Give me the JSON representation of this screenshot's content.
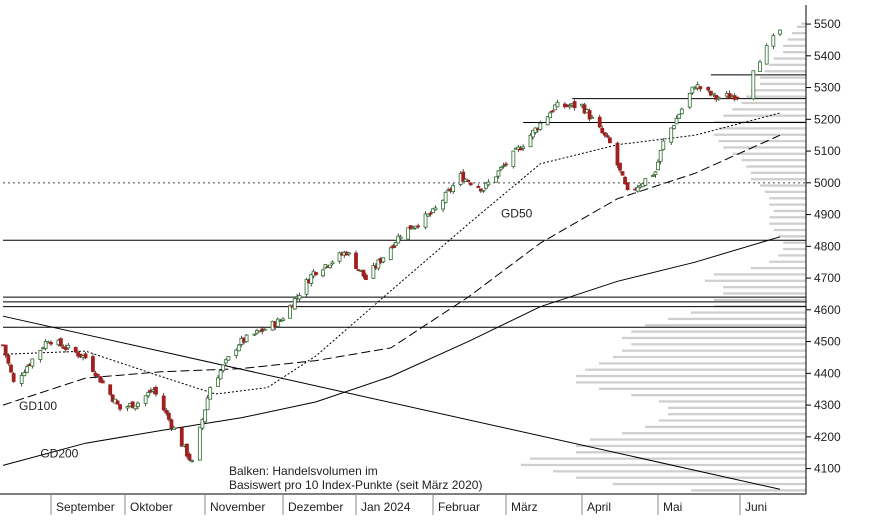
{
  "chart_data": {
    "type": "candlestick",
    "title": "",
    "xlabel": "",
    "ylabel": "",
    "ylim": [
      4020,
      5560
    ],
    "y_ticks": [
      4100,
      4200,
      4300,
      4400,
      4500,
      4600,
      4700,
      4800,
      4900,
      5000,
      5100,
      5200,
      5300,
      5400,
      5500
    ],
    "y_axis_side": "right",
    "grid": false,
    "x_labels": [
      {
        "label": "September",
        "date": "2023-09-01"
      },
      {
        "label": "Oktober",
        "date": "2023-10-01"
      },
      {
        "label": "November",
        "date": "2023-11-01"
      },
      {
        "label": "Dezember",
        "date": "2023-12-01"
      },
      {
        "label": "Jan 2024",
        "date": "2024-01-01"
      },
      {
        "label": "Februar",
        "date": "2024-02-01"
      },
      {
        "label": "März",
        "date": "2024-03-01"
      },
      {
        "label": "April",
        "date": "2024-04-01"
      },
      {
        "label": "Mai",
        "date": "2024-05-01"
      },
      {
        "label": "Juni",
        "date": "2024-06-01"
      }
    ],
    "date_range": [
      "2023-08-14",
      "2024-06-07"
    ],
    "price_anchors": [
      {
        "date": "2023-08-14",
        "close": 4489
      },
      {
        "date": "2023-08-18",
        "close": 4370
      },
      {
        "date": "2023-08-31",
        "close": 4508
      },
      {
        "date": "2023-09-15",
        "close": 4450
      },
      {
        "date": "2023-09-29",
        "close": 4288
      },
      {
        "date": "2023-10-06",
        "close": 4308
      },
      {
        "date": "2023-10-12",
        "close": 4349
      },
      {
        "date": "2023-10-20",
        "close": 4224
      },
      {
        "date": "2023-10-27",
        "close": 4117
      },
      {
        "date": "2023-11-03",
        "close": 4358
      },
      {
        "date": "2023-11-14",
        "close": 4495
      },
      {
        "date": "2023-11-30",
        "close": 4567
      },
      {
        "date": "2023-12-14",
        "close": 4719
      },
      {
        "date": "2023-12-28",
        "close": 4783
      },
      {
        "date": "2024-01-05",
        "close": 4697
      },
      {
        "date": "2024-01-19",
        "close": 4839
      },
      {
        "date": "2024-02-01",
        "close": 4906
      },
      {
        "date": "2024-02-12",
        "close": 5021
      },
      {
        "date": "2024-02-21",
        "close": 4981
      },
      {
        "date": "2024-03-08",
        "close": 5123
      },
      {
        "date": "2024-03-21",
        "close": 5241
      },
      {
        "date": "2024-04-01",
        "close": 5243
      },
      {
        "date": "2024-04-12",
        "close": 5123
      },
      {
        "date": "2024-04-19",
        "close": 4967
      },
      {
        "date": "2024-04-30",
        "close": 5035
      },
      {
        "date": "2024-05-03",
        "close": 5127
      },
      {
        "date": "2024-05-15",
        "close": 5308
      },
      {
        "date": "2024-05-23",
        "close": 5267
      },
      {
        "date": "2024-05-31",
        "close": 5277
      },
      {
        "date": "2024-06-07",
        "close": 5480
      }
    ],
    "moving_averages": [
      {
        "name": "GD50",
        "style": "dotted",
        "points": [
          {
            "date": "2023-08-14",
            "close": 4460
          },
          {
            "date": "2023-09-15",
            "close": 4470
          },
          {
            "date": "2023-10-15",
            "close": 4390
          },
          {
            "date": "2023-11-05",
            "close": 4335
          },
          {
            "date": "2023-11-25",
            "close": 4355
          },
          {
            "date": "2023-12-15",
            "close": 4455
          },
          {
            "date": "2024-01-15",
            "close": 4660
          },
          {
            "date": "2024-02-15",
            "close": 4870
          },
          {
            "date": "2024-03-15",
            "close": 5060
          },
          {
            "date": "2024-04-15",
            "close": 5120
          },
          {
            "date": "2024-05-15",
            "close": 5150
          },
          {
            "date": "2024-06-07",
            "close": 5220
          }
        ]
      },
      {
        "name": "GD100",
        "style": "dashed",
        "points": [
          {
            "date": "2023-08-14",
            "close": 4300
          },
          {
            "date": "2023-09-15",
            "close": 4385
          },
          {
            "date": "2023-10-15",
            "close": 4405
          },
          {
            "date": "2023-11-15",
            "close": 4415
          },
          {
            "date": "2023-12-15",
            "close": 4440
          },
          {
            "date": "2024-01-15",
            "close": 4480
          },
          {
            "date": "2024-02-15",
            "close": 4640
          },
          {
            "date": "2024-03-15",
            "close": 4810
          },
          {
            "date": "2024-04-15",
            "close": 4950
          },
          {
            "date": "2024-05-15",
            "close": 5030
          },
          {
            "date": "2024-06-07",
            "close": 5150
          }
        ]
      },
      {
        "name": "GD200",
        "style": "solid",
        "points": [
          {
            "date": "2023-08-14",
            "close": 4110
          },
          {
            "date": "2023-09-15",
            "close": 4180
          },
          {
            "date": "2023-10-15",
            "close": 4220
          },
          {
            "date": "2023-11-15",
            "close": 4260
          },
          {
            "date": "2023-12-15",
            "close": 4310
          },
          {
            "date": "2024-01-15",
            "close": 4390
          },
          {
            "date": "2024-02-15",
            "close": 4500
          },
          {
            "date": "2024-03-15",
            "close": 4610
          },
          {
            "date": "2024-04-15",
            "close": 4690
          },
          {
            "date": "2024-05-15",
            "close": 4750
          },
          {
            "date": "2024-06-07",
            "close": 4830
          }
        ]
      }
    ],
    "horizontal_lines": [
      {
        "value": 4819,
        "style": "solid",
        "from_date": "2023-08-14"
      },
      {
        "value": 4640,
        "style": "solid",
        "from_date": "2023-08-14"
      },
      {
        "value": 4625,
        "style": "solid",
        "from_date": "2023-08-14"
      },
      {
        "value": 4610,
        "style": "solid",
        "from_date": "2023-08-14"
      },
      {
        "value": 4545,
        "style": "solid",
        "from_date": "2023-08-14"
      },
      {
        "value": 5000,
        "style": "dotted",
        "from_date": "2023-08-14"
      },
      {
        "value": 5265,
        "style": "solid",
        "from_date": "2024-03-28"
      },
      {
        "value": 5190,
        "style": "solid",
        "from_date": "2024-03-08"
      },
      {
        "value": 5340,
        "style": "solid",
        "from_date": "2024-05-21"
      }
    ],
    "trendline": {
      "from": {
        "date": "2023-08-14",
        "close": 4580
      },
      "to": {
        "date": "2024-06-07",
        "close": 4035
      }
    },
    "volume_profile": {
      "description_lines": [
        "Balken: Handelsvolumen im",
        "Basiswert pro 10 Index-Punkte (seit März 2020)"
      ],
      "bucket_size": 10,
      "lengths": [
        [
          4030,
          0.25
        ],
        [
          4050,
          0.42
        ],
        [
          4070,
          0.5
        ],
        [
          4090,
          0.55
        ],
        [
          4110,
          0.62
        ],
        [
          4130,
          0.6
        ],
        [
          4150,
          0.5
        ],
        [
          4170,
          0.5
        ],
        [
          4190,
          0.47
        ],
        [
          4210,
          0.4
        ],
        [
          4230,
          0.35
        ],
        [
          4250,
          0.32
        ],
        [
          4270,
          0.3
        ],
        [
          4290,
          0.3
        ],
        [
          4310,
          0.32
        ],
        [
          4330,
          0.38
        ],
        [
          4350,
          0.45
        ],
        [
          4370,
          0.5
        ],
        [
          4390,
          0.5
        ],
        [
          4410,
          0.48
        ],
        [
          4430,
          0.45
        ],
        [
          4450,
          0.42
        ],
        [
          4470,
          0.4
        ],
        [
          4490,
          0.38
        ],
        [
          4510,
          0.4
        ],
        [
          4530,
          0.38
        ],
        [
          4550,
          0.35
        ],
        [
          4570,
          0.3
        ],
        [
          4590,
          0.25
        ],
        [
          4610,
          0.2
        ],
        [
          4630,
          0.2
        ],
        [
          4650,
          0.18
        ],
        [
          4670,
          0.18
        ],
        [
          4690,
          0.22
        ],
        [
          4710,
          0.2
        ],
        [
          4730,
          0.12
        ],
        [
          4750,
          0.08
        ],
        [
          4770,
          0.06
        ],
        [
          4790,
          0.05
        ],
        [
          4810,
          0.05
        ],
        [
          4830,
          0.06
        ],
        [
          4850,
          0.07
        ],
        [
          4870,
          0.08
        ],
        [
          4890,
          0.08
        ],
        [
          4910,
          0.07
        ],
        [
          4930,
          0.08
        ],
        [
          4950,
          0.08
        ],
        [
          4970,
          0.09
        ],
        [
          4990,
          0.1
        ],
        [
          5010,
          0.12
        ],
        [
          5030,
          0.12
        ],
        [
          5050,
          0.13
        ],
        [
          5070,
          0.14
        ],
        [
          5090,
          0.16
        ],
        [
          5110,
          0.18
        ],
        [
          5130,
          0.19
        ],
        [
          5150,
          0.2
        ],
        [
          5170,
          0.19
        ],
        [
          5190,
          0.2
        ],
        [
          5210,
          0.18
        ],
        [
          5230,
          0.16
        ],
        [
          5250,
          0.14
        ],
        [
          5270,
          0.13
        ],
        [
          5290,
          0.12
        ],
        [
          5310,
          0.1
        ],
        [
          5330,
          0.1
        ],
        [
          5350,
          0.09
        ],
        [
          5370,
          0.08
        ],
        [
          5390,
          0.07
        ],
        [
          5410,
          0.05
        ],
        [
          5430,
          0.05
        ],
        [
          5450,
          0.04
        ],
        [
          5470,
          0.03
        ],
        [
          5490,
          0.02
        ],
        [
          5500,
          0.01
        ]
      ]
    },
    "annotations": [
      {
        "text": "GD50",
        "date": "2024-02-28",
        "close": 4890
      },
      {
        "text": "GD100",
        "date": "2023-08-20",
        "close": 4285
      },
      {
        "text": "GD200",
        "date": "2023-08-28",
        "close": 4135
      }
    ],
    "colors": {
      "up": "#2d6b2d",
      "down": "#a02020",
      "volume": "#cfcfcf",
      "line": "#000000"
    }
  }
}
